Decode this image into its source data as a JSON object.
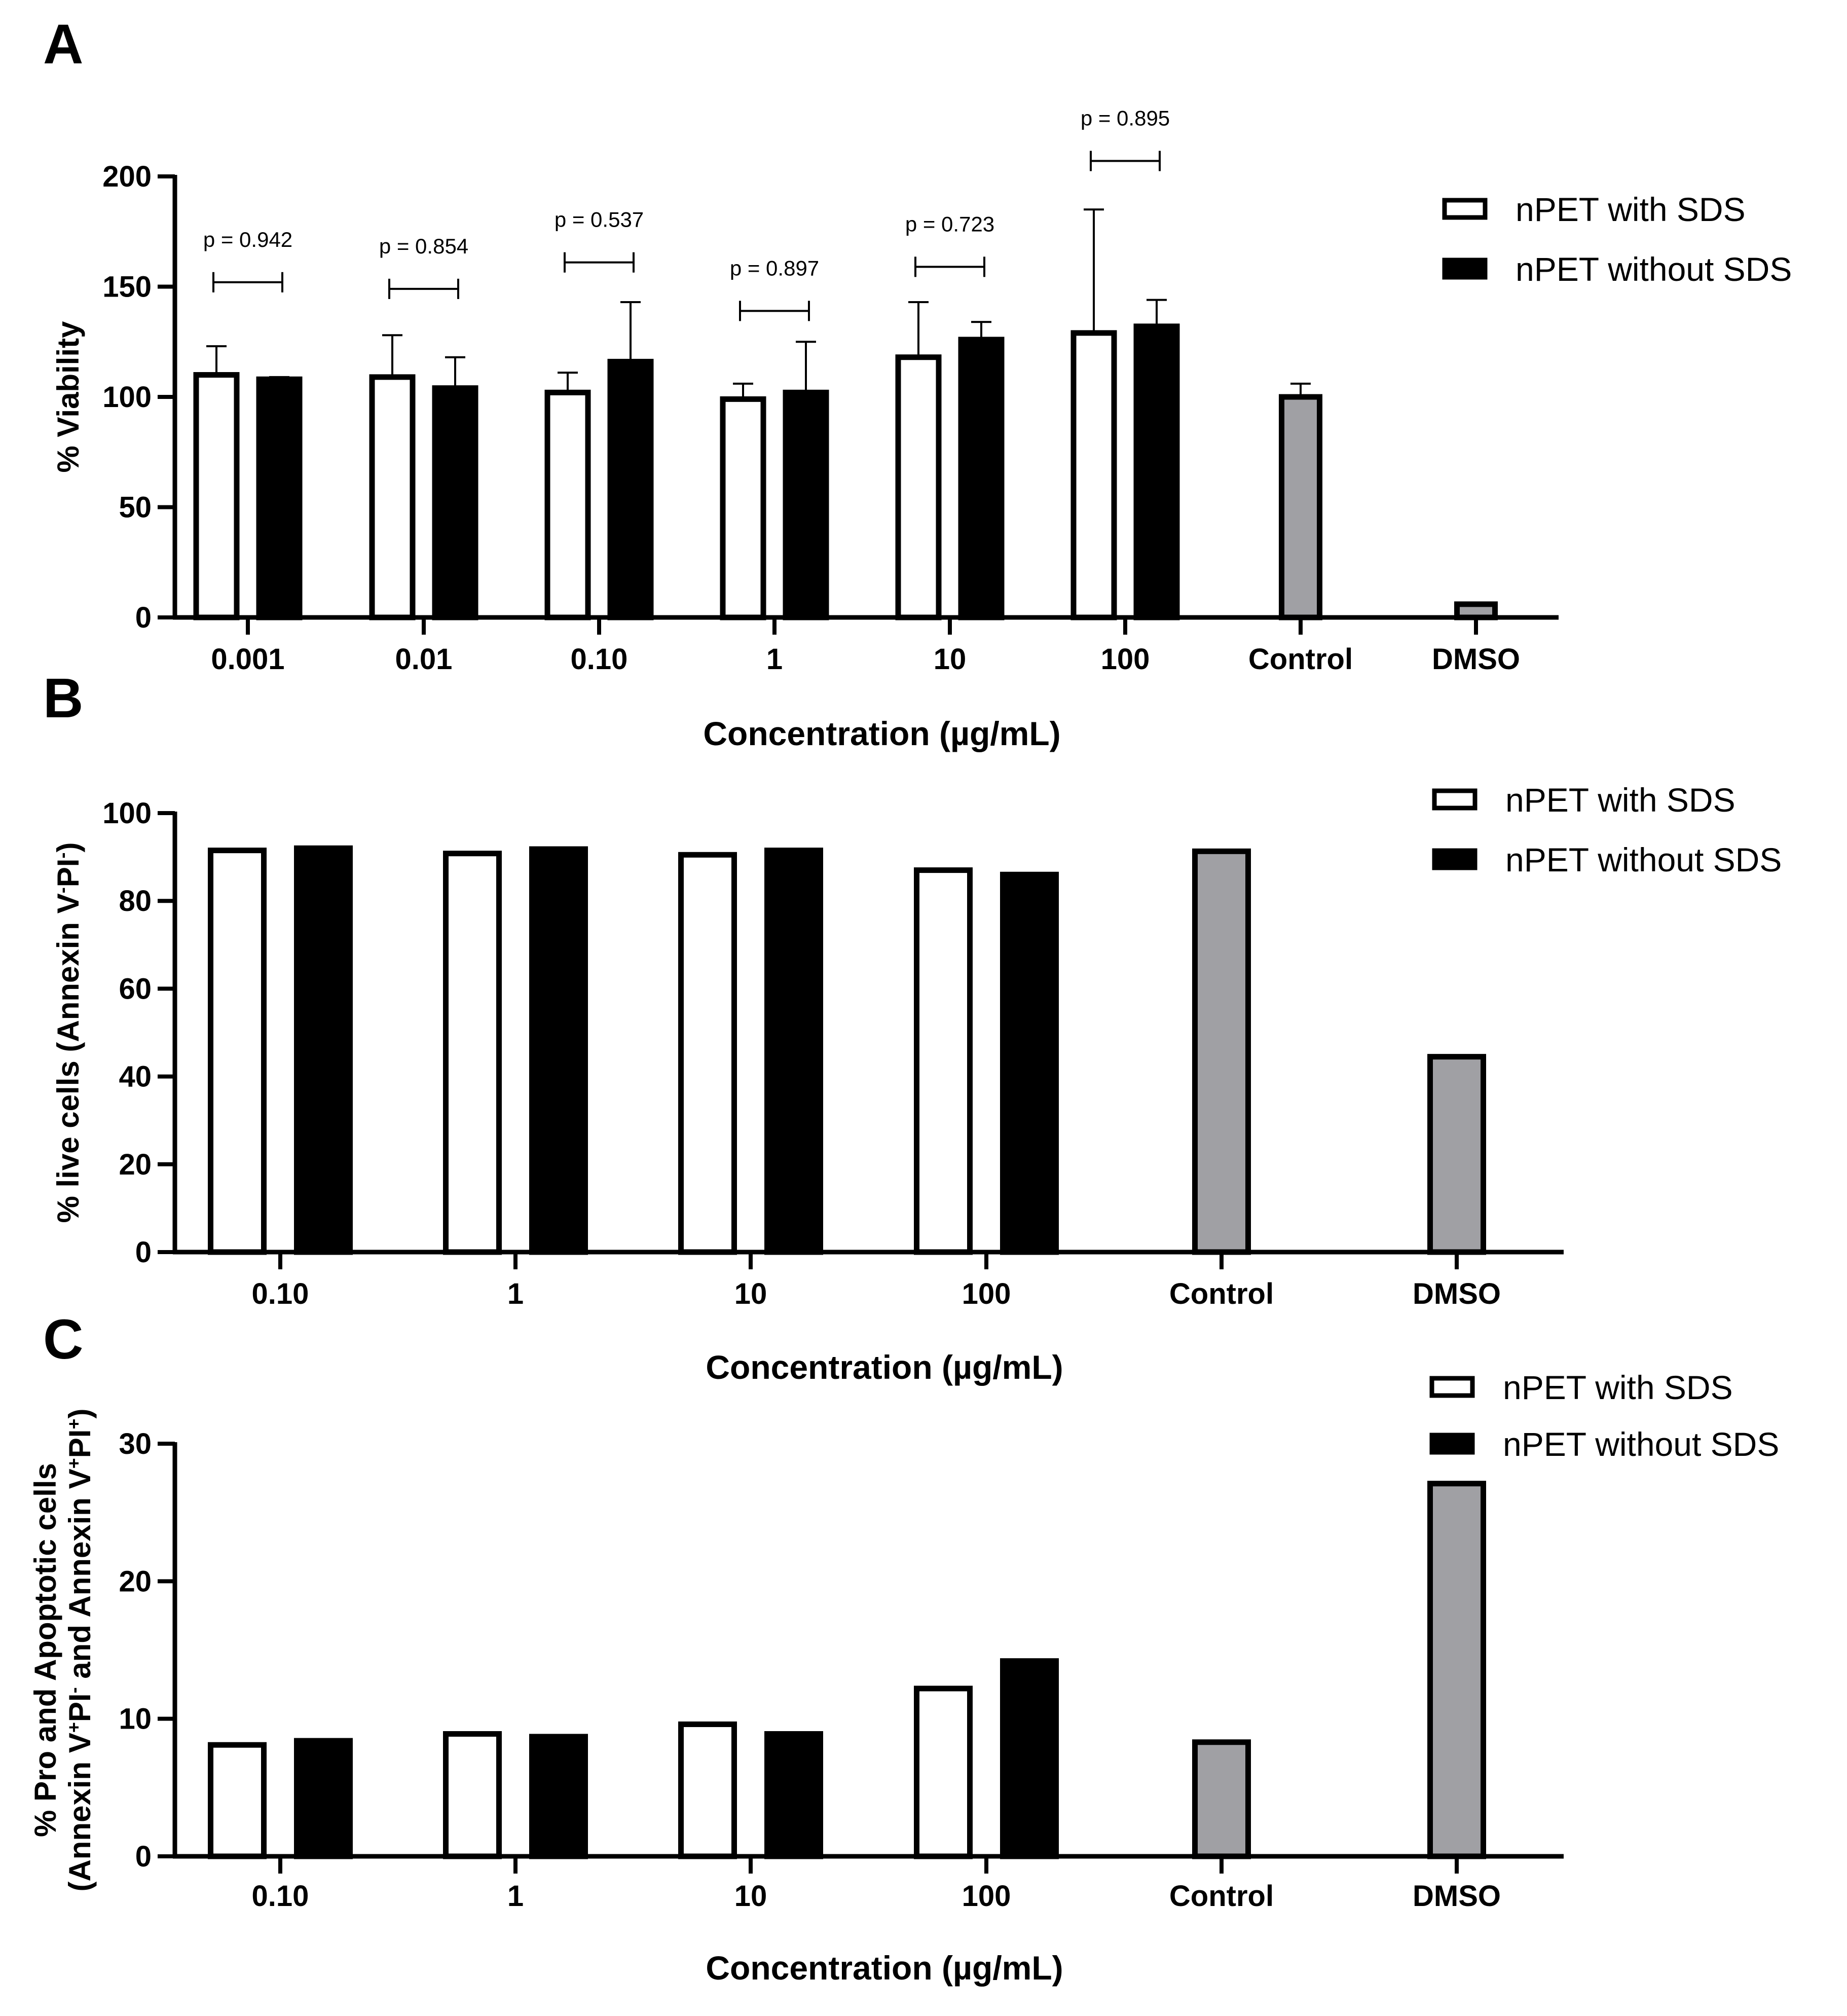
{
  "chart_data": [
    {
      "panel": "A",
      "type": "bar",
      "categories": [
        "0.001",
        "0.01",
        "0.10",
        "1",
        "10",
        "100",
        "Control",
        "DMSO"
      ],
      "ylabel": "% Viability",
      "xlabel": "Concentration (µg/mL)",
      "ylim": [
        0,
        200
      ],
      "yticks": [
        "0",
        "50",
        "100",
        "150",
        "200"
      ],
      "legend": {
        "position": "top-right",
        "items": [
          "nPET with SDS",
          "nPET without SDS"
        ]
      },
      "series": [
        {
          "name": "nPET with SDS",
          "color": "#ffffff",
          "values": [
            110,
            109,
            102,
            99,
            118,
            129,
            null,
            null
          ],
          "errors": [
            13,
            19,
            9,
            7,
            25,
            56,
            null,
            null
          ]
        },
        {
          "name": "nPET without SDS",
          "color": "#000000",
          "values": [
            108,
            104,
            116,
            102,
            126,
            132,
            null,
            null
          ],
          "errors": [
            1,
            14,
            27,
            23,
            8,
            12,
            null,
            null
          ]
        },
        {
          "name": "",
          "color": "#a0a0a4",
          "values": [
            null,
            null,
            null,
            null,
            null,
            null,
            100,
            6
          ],
          "errors": [
            null,
            null,
            null,
            null,
            null,
            null,
            6,
            0
          ]
        }
      ],
      "annotations": [
        {
          "category": "0.001",
          "text": "p = 0.942",
          "bracket_y": 152
        },
        {
          "category": "0.01",
          "text": "p = 0.854",
          "bracket_y": 149
        },
        {
          "category": "0.10",
          "text": "p = 0.537",
          "bracket_y": 161
        },
        {
          "category": "1",
          "text": "p = 0.897",
          "bracket_y": 139
        },
        {
          "category": "10",
          "text": "p = 0.723",
          "bracket_y": 159
        },
        {
          "category": "100",
          "text": "p = 0.895",
          "bracket_y": 207
        }
      ]
    },
    {
      "panel": "B",
      "type": "bar",
      "categories": [
        "0.10",
        "1",
        "10",
        "100",
        "Control",
        "DMSO"
      ],
      "ylabel_parts": [
        "% live cells (Annexin  V",
        "-",
        "PI",
        "-",
        ")"
      ],
      "xlabel": "Concentration (µg/mL)",
      "ylim": [
        0,
        100
      ],
      "yticks": [
        "0",
        "20",
        "40",
        "60",
        "80",
        "100"
      ],
      "legend": {
        "position": "top-right",
        "items": [
          "nPET with SDS",
          "nPET without SDS"
        ]
      },
      "series": [
        {
          "name": "nPET with SDS",
          "color": "#ffffff",
          "values": [
            91.5,
            90.8,
            90.5,
            87.0,
            null,
            null
          ]
        },
        {
          "name": "nPET without SDS",
          "color": "#000000",
          "values": [
            92.0,
            91.8,
            91.5,
            86.0,
            null,
            null
          ]
        },
        {
          "name": "",
          "color": "#a0a0a4",
          "values": [
            null,
            null,
            null,
            null,
            91.3,
            44.5
          ]
        }
      ]
    },
    {
      "panel": "C",
      "type": "bar",
      "categories": [
        "0.10",
        "1",
        "10",
        "100",
        "Control",
        "DMSO"
      ],
      "ylabel_line1": "% Pro and Apoptotic cells",
      "ylabel_line2_parts": [
        "(Annexin V",
        "+",
        "PI",
        "-",
        " and Annexin V",
        "+",
        "PI",
        "+",
        ")"
      ],
      "xlabel": "Concentration (µg/mL)",
      "ylim": [
        0,
        30
      ],
      "yticks": [
        "0",
        "10",
        "20",
        "30"
      ],
      "legend": {
        "position": "top-right",
        "items": [
          "nPET with SDS",
          "nPET without SDS"
        ]
      },
      "series": [
        {
          "name": "nPET with SDS",
          "color": "#ffffff",
          "values": [
            8.1,
            8.9,
            9.6,
            12.2,
            null,
            null
          ]
        },
        {
          "name": "nPET without SDS",
          "color": "#000000",
          "values": [
            8.4,
            8.7,
            8.9,
            14.2,
            null,
            null
          ]
        },
        {
          "name": "",
          "color": "#a0a0a4",
          "values": [
            null,
            null,
            null,
            null,
            8.3,
            27.1
          ]
        }
      ]
    }
  ]
}
